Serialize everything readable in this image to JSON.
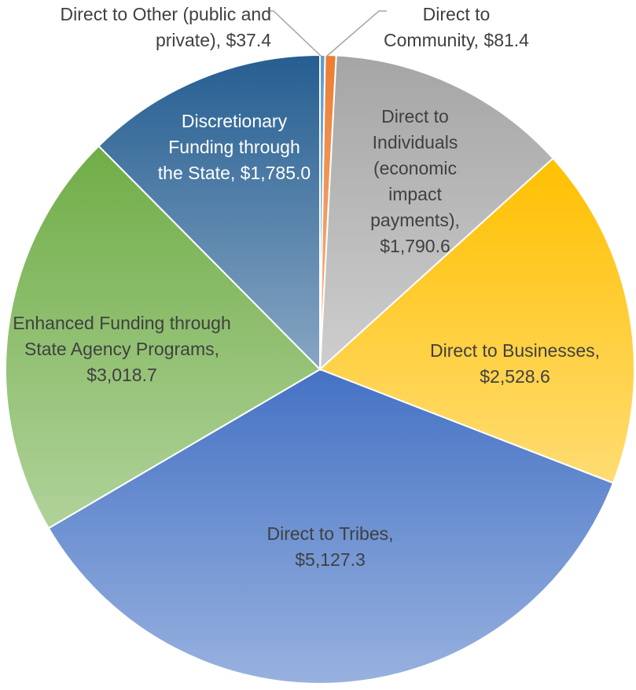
{
  "chart_data": {
    "type": "pie",
    "categories": [
      "Direct to Other (public and private),",
      "Direct to Community,",
      "Direct to Individuals (economic impact payments),",
      "Direct to Businesses,",
      "Direct to Tribes,",
      "Enhanced Funding through State Agency Programs,",
      "Discretionary Funding through the State,"
    ],
    "values": [
      37.4,
      81.4,
      1790.6,
      2528.6,
      5127.3,
      3018.7,
      1785.0
    ],
    "value_labels": [
      "$37.4",
      "$81.4",
      "$1,790.6",
      "$2,528.6",
      "$5,127.3",
      "$3,018.7",
      "$1,785.0"
    ],
    "colors": [
      "#5b9bd5",
      "#ed7d31",
      "#a5a5a5",
      "#ffc000",
      "#4472c4",
      "#70ad47",
      "#255e91"
    ]
  }
}
